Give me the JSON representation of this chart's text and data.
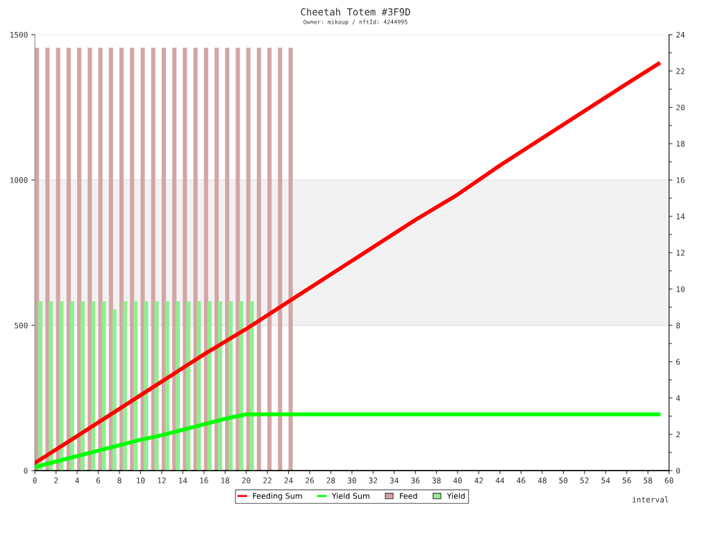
{
  "chart_data": {
    "type": "bar",
    "title": "Cheetah Totem #3F9D",
    "subtitle": "Owner: mikoup / nftId: 4244995",
    "xlabel": "interval",
    "xlim": [
      0,
      60
    ],
    "xticks": [
      0,
      2,
      4,
      6,
      8,
      10,
      12,
      14,
      16,
      18,
      20,
      22,
      24,
      26,
      28,
      30,
      32,
      34,
      36,
      38,
      40,
      42,
      44,
      46,
      48,
      50,
      52,
      54,
      56,
      58,
      60
    ],
    "ylim": [
      0,
      1500
    ],
    "yticks": [
      0,
      500,
      1000,
      1500
    ],
    "y2lim": [
      0,
      24
    ],
    "y2ticks": [
      0,
      {
        "value": 1,
        "label": null
      },
      2,
      {
        "value": 3,
        "label": null
      },
      4,
      {
        "value": 5,
        "label": null
      },
      6,
      {
        "value": 7,
        "label": null
      },
      8,
      {
        "value": 9,
        "label": null
      },
      10,
      {
        "value": 11,
        "label": null
      },
      12,
      {
        "value": 13,
        "label": null
      },
      14,
      {
        "value": 15,
        "label": null
      },
      16,
      {
        "value": 17,
        "label": null
      },
      18,
      {
        "value": 19,
        "label": null
      },
      20,
      {
        "value": 21,
        "label": null
      },
      22,
      {
        "value": 23,
        "label": null
      },
      24
    ],
    "grid": "y",
    "legend": "bottom",
    "bands": [
      {
        "axis": "y",
        "from": 500,
        "to": 1000,
        "color": "#f2f2f2"
      }
    ],
    "series": [
      {
        "name": "Feeding Sum",
        "type": "line",
        "axis": "y2",
        "color": "#ff0000",
        "x": [
          0,
          4,
          8,
          12,
          16,
          20,
          24,
          28,
          32,
          36,
          40,
          44,
          48,
          52,
          56,
          59
        ],
        "values": [
          0.42,
          1.9,
          3.4,
          4.9,
          6.4,
          7.8,
          9.3,
          10.8,
          12.3,
          13.8,
          15.2,
          16.8,
          18.3,
          19.8,
          21.3,
          22.4
        ]
      },
      {
        "name": "Yield Sum",
        "type": "line",
        "axis": "y2",
        "color": "#00ff00",
        "x": [
          0,
          2,
          4,
          6,
          8,
          10,
          12,
          14,
          16,
          18,
          20,
          30,
          40,
          50,
          59
        ],
        "values": [
          0.19,
          0.5,
          0.8,
          1.1,
          1.4,
          1.7,
          1.95,
          2.25,
          2.55,
          2.85,
          3.1,
          3.1,
          3.1,
          3.1,
          3.1
        ]
      },
      {
        "name": "Feed",
        "color": "#d4a5a5",
        "x": [
          0,
          1,
          2,
          3,
          4,
          5,
          6,
          7,
          8,
          9,
          10,
          11,
          12,
          13,
          14,
          15,
          16,
          17,
          18,
          19,
          20,
          21,
          22,
          23,
          24
        ],
        "values": [
          1455,
          1455,
          1455,
          1455,
          1455,
          1455,
          1455,
          1455,
          1455,
          1455,
          1455,
          1455,
          1455,
          1455,
          1455,
          1455,
          1455,
          1455,
          1455,
          1455,
          1455,
          1455,
          1455,
          1455,
          1455
        ]
      },
      {
        "name": "Yield",
        "color": "#90ee90",
        "x": [
          0,
          1,
          2,
          3,
          4,
          5,
          6,
          7,
          8,
          9,
          10,
          11,
          12,
          13,
          14,
          15,
          16,
          17,
          18,
          19,
          20
        ],
        "values": [
          583,
          583,
          583,
          583,
          583,
          583,
          583,
          555,
          583,
          583,
          583,
          583,
          583,
          583,
          583,
          583,
          583,
          583,
          583,
          583,
          583
        ]
      }
    ]
  }
}
